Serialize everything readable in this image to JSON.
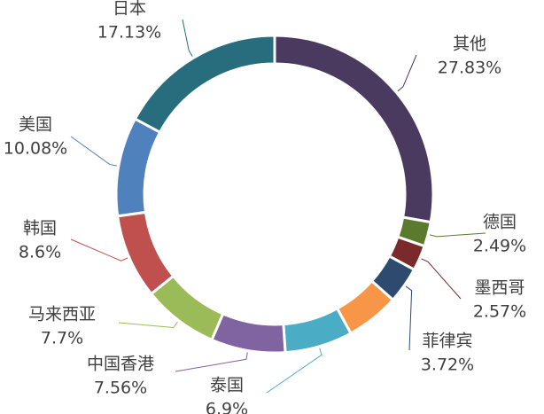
{
  "chart_data": {
    "type": "pie",
    "subtype": "donut",
    "legend": "none",
    "slices": [
      {
        "label": "其他",
        "value": 27.83,
        "value_label": "27.83%",
        "color": "#4b3a5f"
      },
      {
        "label": "德国",
        "value": 2.49,
        "value_label": "2.49%",
        "color": "#5b7a2e"
      },
      {
        "label": "墨西哥",
        "value": 2.57,
        "value_label": "2.57%",
        "color": "#7a2a2a"
      },
      {
        "label": "菲律宾",
        "value": 3.72,
        "value_label": "3.72%",
        "color": "#2e4a6e"
      },
      {
        "label": "",
        "value": 5.42,
        "value_label": "",
        "color": "#f79646"
      },
      {
        "label": "泰国",
        "value": 6.9,
        "value_label": "6.9%",
        "color": "#4bacc6"
      },
      {
        "label": "中国香港",
        "value": 7.56,
        "value_label": "7.56%",
        "color": "#8064a2"
      },
      {
        "label": "马来西亚",
        "value": 7.7,
        "value_label": "7.7%",
        "color": "#9bbb59"
      },
      {
        "label": "韩国",
        "value": 8.6,
        "value_label": "8.6%",
        "color": "#c0504d"
      },
      {
        "label": "美国",
        "value": 10.08,
        "value_label": "10.08%",
        "color": "#4f81bd"
      },
      {
        "label": "日本",
        "value": 17.13,
        "value_label": "17.13%",
        "color": "#276d7d"
      }
    ]
  }
}
